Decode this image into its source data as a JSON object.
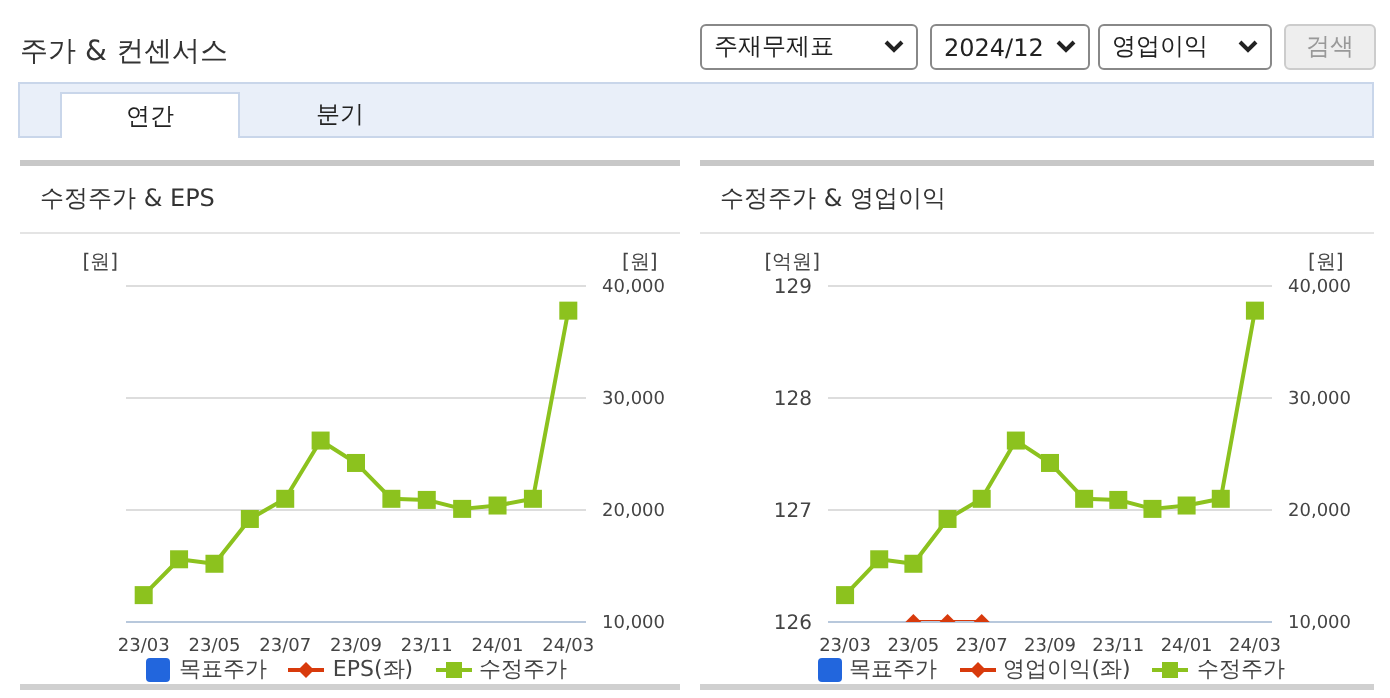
{
  "chart_data": [
    {
      "type": "line",
      "title": "수정주가 & EPS",
      "ylabel": "[원]",
      "y2label": "[원]",
      "annotations": [
        "주가 & 컨센서스",
        "주재무제표",
        "2024/12",
        "영업이익",
        "검색",
        "연간",
        "분기"
      ],
      "categories": [
        "23/03",
        null,
        "23/05",
        null,
        "23/07",
        null,
        "23/09",
        null,
        "23/11",
        null,
        "24/01",
        null,
        "24/03"
      ],
      "series": [
        {
          "name": "목표주가",
          "type": "bar",
          "color": "#2266dd",
          "values": [
            null,
            null,
            null,
            null,
            null,
            null,
            null,
            null,
            null,
            null,
            null,
            null,
            null
          ]
        },
        {
          "name": "EPS(좌)",
          "marker": "diamond",
          "color": "#d83a0c",
          "values": [
            null,
            null,
            null,
            null,
            null,
            null,
            null,
            null,
            null,
            null,
            null,
            null,
            null
          ]
        },
        {
          "name": "수정주가",
          "marker": "square",
          "axis": "y2",
          "color": "#8cc21e",
          "values": [
            12400,
            15600,
            15200,
            19200,
            21000,
            26200,
            24200,
            21000,
            20900,
            20100,
            20400,
            21000,
            37800
          ]
        }
      ],
      "y2lim": [
        10000,
        40000
      ],
      "y2ticks": [
        {
          "value": 10000,
          "label": "10,000"
        },
        {
          "value": 20000,
          "label": "20,000"
        },
        {
          "value": 30000,
          "label": "30,000"
        },
        {
          "value": 40000,
          "label": "40,000"
        }
      ],
      "grid": "y",
      "legend": "bottom"
    },
    {
      "type": "line",
      "title": "수정주가 & 영업이익",
      "ylabel": "[억원]",
      "y2label": "[원]",
      "categories": [
        "23/03",
        null,
        "23/05",
        null,
        "23/07",
        null,
        "23/09",
        null,
        "23/11",
        null,
        "24/01",
        null,
        "24/03"
      ],
      "series": [
        {
          "name": "목표주가",
          "type": "bar",
          "color": "#2266dd",
          "values": [
            null,
            null,
            null,
            null,
            null,
            null,
            null,
            null,
            null,
            null,
            null,
            null,
            null
          ]
        },
        {
          "name": "영업이익(좌)",
          "marker": "diamond",
          "color": "#d83a0c",
          "values": [
            null,
            null,
            126,
            126,
            126,
            null,
            null,
            null,
            null,
            null,
            null,
            null,
            null
          ]
        },
        {
          "name": "수정주가",
          "marker": "square",
          "axis": "y2",
          "color": "#8cc21e",
          "values": [
            12400,
            15600,
            15200,
            19200,
            21000,
            26200,
            24200,
            21000,
            20900,
            20100,
            20400,
            21000,
            37800
          ]
        }
      ],
      "ylim": [
        126,
        129
      ],
      "yticks": [
        126,
        127,
        128,
        129
      ],
      "y2lim": [
        10000,
        40000
      ],
      "y2ticks": [
        {
          "value": 10000,
          "label": "10,000"
        },
        {
          "value": 20000,
          "label": "20,000"
        },
        {
          "value": 30000,
          "label": "30,000"
        },
        {
          "value": 40000,
          "label": "40,000"
        }
      ],
      "grid": "y",
      "legend": "bottom"
    }
  ]
}
